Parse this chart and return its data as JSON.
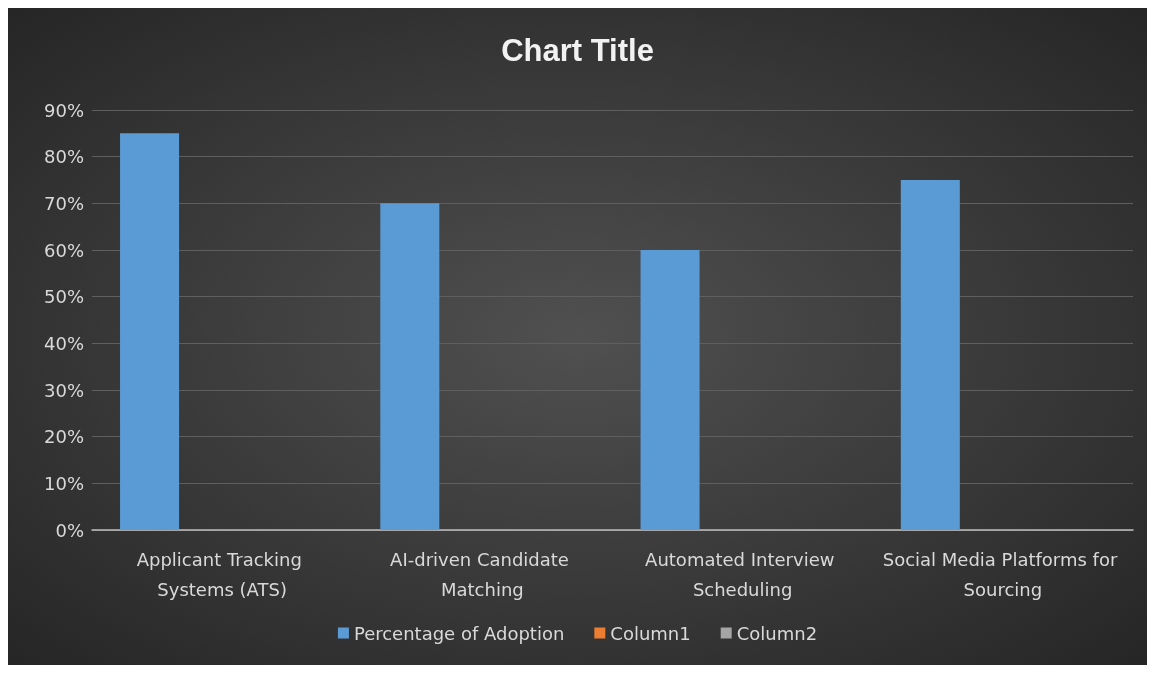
{
  "chart_data": {
    "type": "bar",
    "title": "Chart Title",
    "categories": [
      "Applicant Tracking Systems (ATS)",
      "AI-driven Candidate Matching",
      "Automated Interview Scheduling",
      "Social Media Platforms for Sourcing"
    ],
    "series": [
      {
        "name": "Percentage of Adoption",
        "color": "#5b9bd5",
        "values": [
          85,
          70,
          60,
          75
        ]
      },
      {
        "name": "Column1",
        "color": "#ed7d31",
        "values": [
          null,
          null,
          null,
          null
        ]
      },
      {
        "name": "Column2",
        "color": "#a5a5a5",
        "values": [
          null,
          null,
          null,
          null
        ]
      }
    ],
    "ylim": [
      0,
      90
    ],
    "yticks": [
      {
        "value": 0,
        "label": "0%"
      },
      {
        "value": 10,
        "label": "10%"
      },
      {
        "value": 20,
        "label": "20%"
      },
      {
        "value": 30,
        "label": "30%"
      },
      {
        "value": 40,
        "label": "40%"
      },
      {
        "value": 50,
        "label": "50%"
      },
      {
        "value": 60,
        "label": "60%"
      },
      {
        "value": 70,
        "label": "70%"
      },
      {
        "value": 80,
        "label": "80%"
      },
      {
        "value": 90,
        "label": "90%"
      }
    ],
    "grid": "y",
    "legend": "bottom"
  }
}
